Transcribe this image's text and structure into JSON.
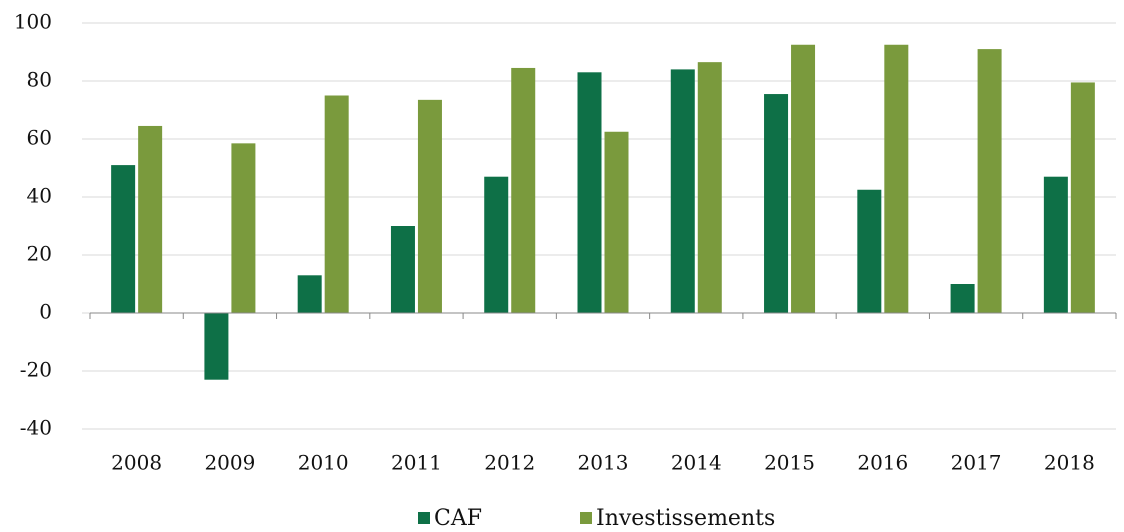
{
  "chart_data": {
    "type": "bar",
    "categories": [
      "2008",
      "2009",
      "2010",
      "2011",
      "2012",
      "2013",
      "2014",
      "2015",
      "2016",
      "2017",
      "2018"
    ],
    "series": [
      {
        "name": "CAF",
        "color": "#0e7047",
        "values": [
          51,
          -23,
          13,
          30,
          47,
          83,
          84,
          75.5,
          42.5,
          10,
          47
        ]
      },
      {
        "name": "Investissements",
        "color": "#7a9a3d",
        "values": [
          64.5,
          58.5,
          75,
          73.5,
          84.5,
          62.5,
          86.5,
          92.5,
          92.5,
          91,
          79.5
        ]
      }
    ],
    "ylim": [
      -40,
      100
    ],
    "yticks": [
      -40,
      -20,
      0,
      20,
      40,
      60,
      80,
      100
    ],
    "grid": true,
    "legend": "bottom"
  }
}
